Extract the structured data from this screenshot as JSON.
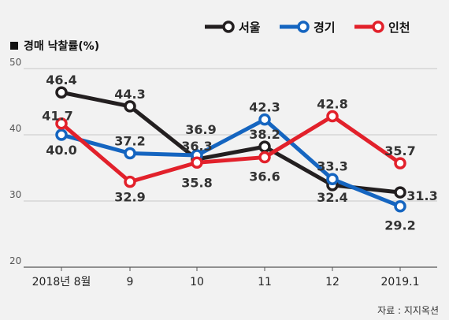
{
  "chart_data": {
    "type": "line",
    "title": "경매 낙찰률(%)",
    "source": "자료 : 지지옥션",
    "categories": [
      "2018년 8월",
      "9",
      "10",
      "11",
      "12",
      "2019.1"
    ],
    "ylim": [
      20,
      50
    ],
    "yticks": [
      20,
      30,
      40,
      50
    ],
    "grid": true,
    "legend_position": "top-right",
    "series": [
      {
        "name": "서울",
        "color": "#231f20",
        "values": [
          46.4,
          44.3,
          36.3,
          38.2,
          32.4,
          31.3
        ]
      },
      {
        "name": "경기",
        "color": "#1565c0",
        "values": [
          40.0,
          37.2,
          36.9,
          42.3,
          33.3,
          29.2
        ]
      },
      {
        "name": "인천",
        "color": "#e2212b",
        "values": [
          41.7,
          32.9,
          35.8,
          36.6,
          42.8,
          35.7
        ]
      }
    ],
    "data_labels": [
      [
        "46.4",
        "44.3",
        "36.3",
        "38.2",
        "32.4",
        "31.3"
      ],
      [
        "40.0",
        "37.2",
        "36.9",
        "42.3",
        "33.3",
        "29.2"
      ],
      [
        "41.7",
        "32.9",
        "35.8",
        "36.6",
        "42.8",
        "35.7"
      ]
    ]
  }
}
